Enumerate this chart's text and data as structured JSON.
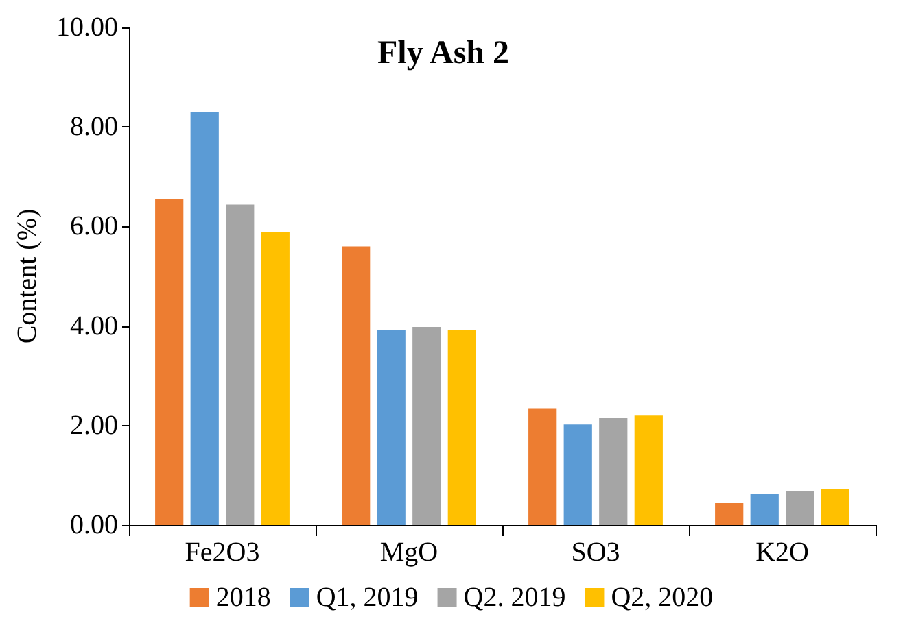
{
  "chart_data": {
    "type": "bar",
    "title": "Fly Ash 2",
    "ylabel": "Content (%)",
    "categories": [
      "Fe2O3",
      "MgO",
      "SO3",
      "K2O"
    ],
    "series": [
      {
        "name": "2018",
        "color": "#ed7d31",
        "values": [
          6.55,
          5.6,
          2.35,
          0.44
        ]
      },
      {
        "name": "Q1, 2019",
        "color": "#5b9bd5",
        "values": [
          8.3,
          3.92,
          2.02,
          0.63
        ]
      },
      {
        "name": "Q2. 2019",
        "color": "#a5a5a5",
        "values": [
          6.44,
          3.98,
          2.15,
          0.68
        ]
      },
      {
        "name": "Q2, 2020",
        "color": "#ffc000",
        "values": [
          5.88,
          3.92,
          2.2,
          0.73
        ]
      }
    ],
    "ylim": [
      0,
      10
    ],
    "yticks": [
      {
        "value": 0,
        "label": "0.00"
      },
      {
        "value": 2,
        "label": "2.00"
      },
      {
        "value": 4,
        "label": "4.00"
      },
      {
        "value": 6,
        "label": "6.00"
      },
      {
        "value": 8,
        "label": "8.00"
      },
      {
        "value": 10,
        "label": "10.00"
      }
    ],
    "grid": false,
    "legend": "bottom"
  }
}
